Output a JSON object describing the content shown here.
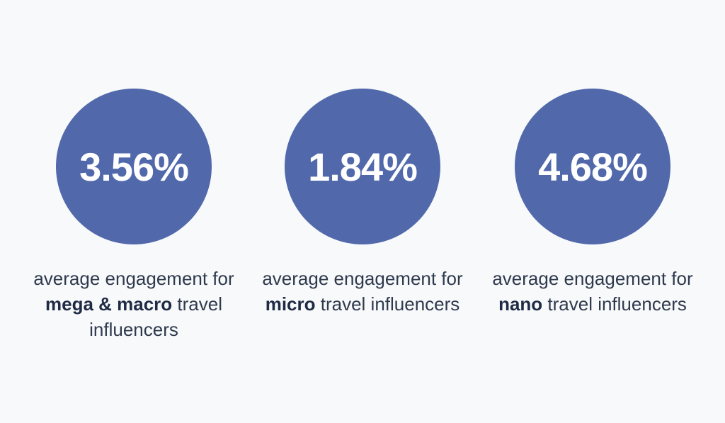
{
  "accent_color": "#5169ab",
  "stats": [
    {
      "value": "3.56%",
      "caption_prefix": "average engagement for ",
      "caption_bold": "mega & macro",
      "caption_suffix": " travel influencers"
    },
    {
      "value": "1.84%",
      "caption_prefix": "average engagement for ",
      "caption_bold": "micro",
      "caption_suffix": " travel influencers"
    },
    {
      "value": "4.68%",
      "caption_prefix": "average engagement for ",
      "caption_bold": "nano",
      "caption_suffix": " travel influencers"
    }
  ]
}
